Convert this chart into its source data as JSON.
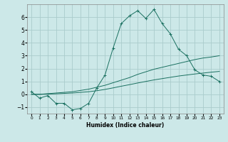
{
  "xlabel": "Humidex (Indice chaleur)",
  "background_color": "#cce8e8",
  "grid_color": "#aacccc",
  "line_color": "#1a7060",
  "x_values": [
    0,
    1,
    2,
    3,
    4,
    5,
    6,
    7,
    8,
    9,
    10,
    11,
    12,
    13,
    14,
    15,
    16,
    17,
    18,
    19,
    20,
    21,
    22,
    23
  ],
  "line1_y": [
    0.2,
    -0.3,
    -0.1,
    -0.7,
    -0.7,
    -1.2,
    -1.1,
    -0.7,
    0.5,
    1.5,
    3.6,
    5.5,
    6.1,
    6.5,
    5.9,
    6.6,
    5.5,
    4.7,
    3.5,
    3.0,
    1.9,
    1.5,
    1.4,
    1.0
  ],
  "line2_y": [
    0.0,
    0.0,
    0.05,
    0.1,
    0.15,
    0.2,
    0.3,
    0.4,
    0.55,
    0.7,
    0.9,
    1.1,
    1.3,
    1.55,
    1.75,
    1.95,
    2.1,
    2.25,
    2.4,
    2.55,
    2.7,
    2.82,
    2.9,
    3.0
  ],
  "line3_y": [
    0.0,
    0.0,
    0.02,
    0.04,
    0.07,
    0.1,
    0.15,
    0.2,
    0.28,
    0.38,
    0.5,
    0.63,
    0.75,
    0.88,
    1.0,
    1.12,
    1.22,
    1.32,
    1.42,
    1.5,
    1.58,
    1.65,
    1.72,
    1.78
  ],
  "ylim": [
    -1.5,
    7.0
  ],
  "xlim": [
    -0.5,
    23.5
  ],
  "yticks": [
    -1,
    0,
    1,
    2,
    3,
    4,
    5,
    6
  ],
  "xtick_labels": [
    "0",
    "1",
    "2",
    "3",
    "4",
    "5",
    "6",
    "7",
    "8",
    "9",
    "10",
    "11",
    "12",
    "13",
    "14",
    "15",
    "16",
    "17",
    "18",
    "19",
    "20",
    "21",
    "22",
    "23"
  ]
}
